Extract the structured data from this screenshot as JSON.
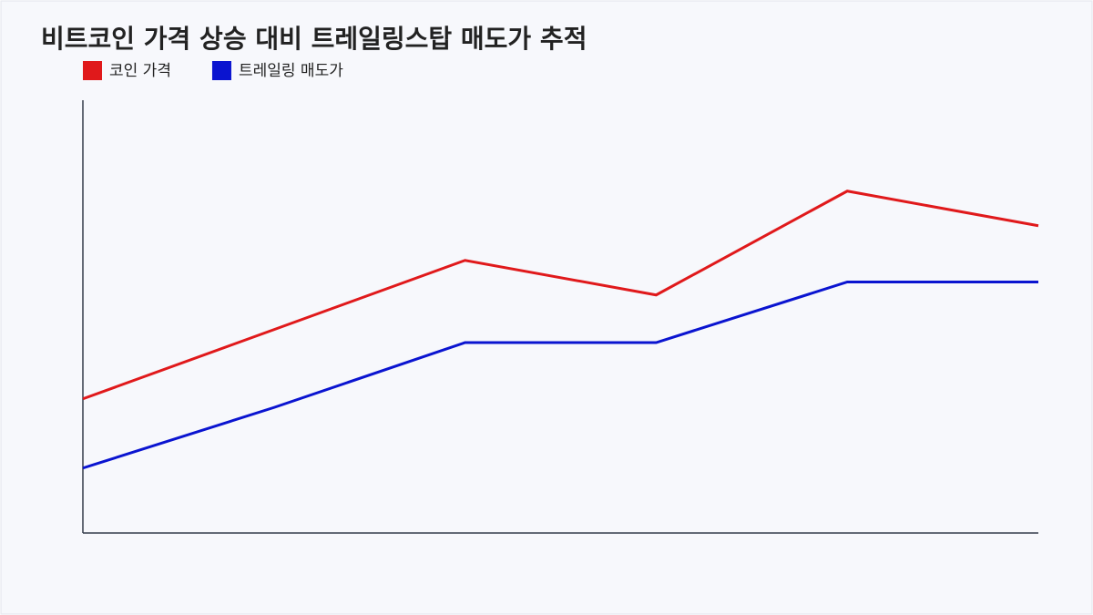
{
  "chart_data": {
    "type": "line",
    "title": "비트코인 가격 상승 대비 트레일링스탑 매도가 추적",
    "categories": [
      null,
      null,
      null,
      null,
      null,
      null
    ],
    "series": [
      {
        "name": "코인 가격",
        "color": "#e0191b",
        "values": [
          31,
          47,
          63,
          55,
          79,
          71
        ]
      },
      {
        "name": "트레일링 매도가",
        "color": "#0a14d0",
        "values": [
          15,
          29,
          44,
          44,
          58,
          58
        ]
      }
    ],
    "ylim": [
      0,
      100
    ],
    "grid": false,
    "legend": "top-left"
  }
}
